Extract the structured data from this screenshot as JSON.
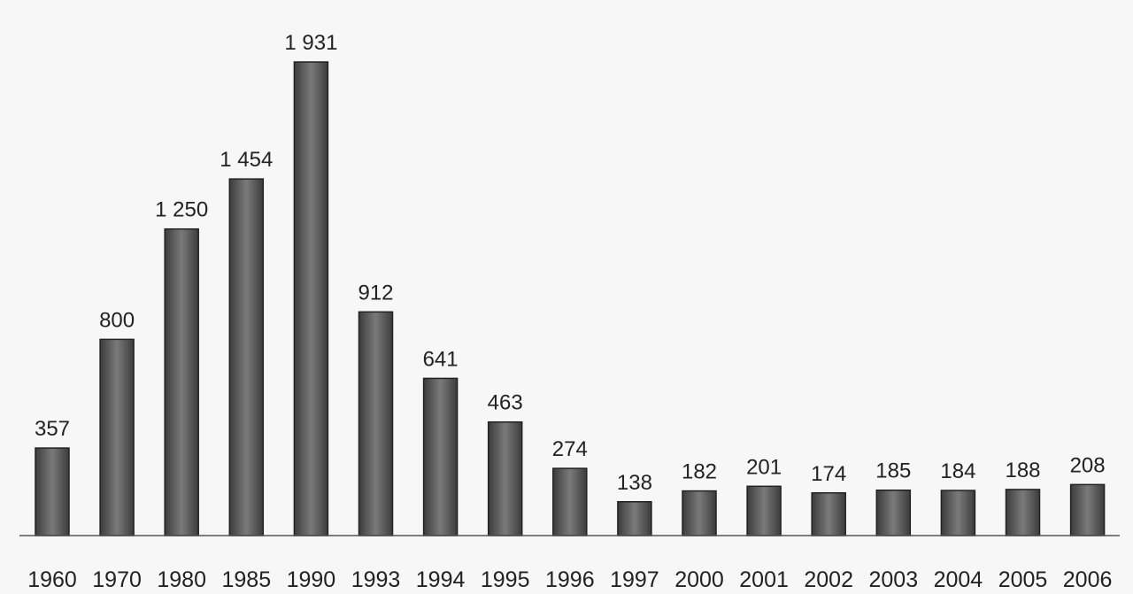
{
  "chart_data": {
    "type": "bar",
    "categories": [
      "1960",
      "1970",
      "1980",
      "1985",
      "1990",
      "1993",
      "1994",
      "1995",
      "1996",
      "1997",
      "2000",
      "2001",
      "2002",
      "2003",
      "2004",
      "2005",
      "2006"
    ],
    "values": [
      357,
      800,
      1250,
      1454,
      1931,
      912,
      641,
      463,
      274,
      138,
      182,
      201,
      174,
      185,
      184,
      188,
      208
    ],
    "value_labels": [
      "357",
      "800",
      "1 250",
      "1 454",
      "1 931",
      "912",
      "641",
      "463",
      "274",
      "138",
      "182",
      "201",
      "174",
      "185",
      "184",
      "188",
      "208"
    ],
    "color": "#7a7a7a"
  }
}
